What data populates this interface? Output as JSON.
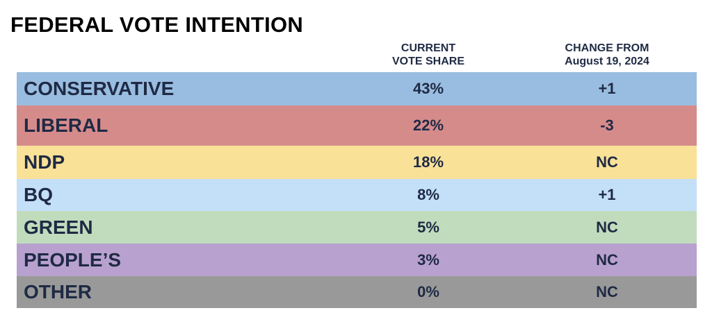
{
  "chart_data": {
    "type": "table",
    "title": "FEDERAL VOTE INTENTION",
    "columns": [
      {
        "line1": "CURRENT",
        "line2": "VOTE SHARE"
      },
      {
        "line1": "CHANGE FROM",
        "line2": "August 19, 2024"
      }
    ],
    "rows": [
      {
        "party": "CONSERVATIVE",
        "share": "43%",
        "change": "+1",
        "color": "#99bde0"
      },
      {
        "party": "LIBERAL",
        "share": "22%",
        "change": "-3",
        "color": "#d68b8b"
      },
      {
        "party": "NDP",
        "share": "18%",
        "change": "NC",
        "color": "#f9e198"
      },
      {
        "party": "BQ",
        "share": "8%",
        "change": "+1",
        "color": "#c4dff8"
      },
      {
        "party": "GREEN",
        "share": "5%",
        "change": "NC",
        "color": "#c0dcbd"
      },
      {
        "party": "PEOPLE’S",
        "share": "3%",
        "change": "NC",
        "color": "#b8a1cf"
      },
      {
        "party": "OTHER",
        "share": "0%",
        "change": "NC",
        "color": "#999999"
      }
    ]
  }
}
